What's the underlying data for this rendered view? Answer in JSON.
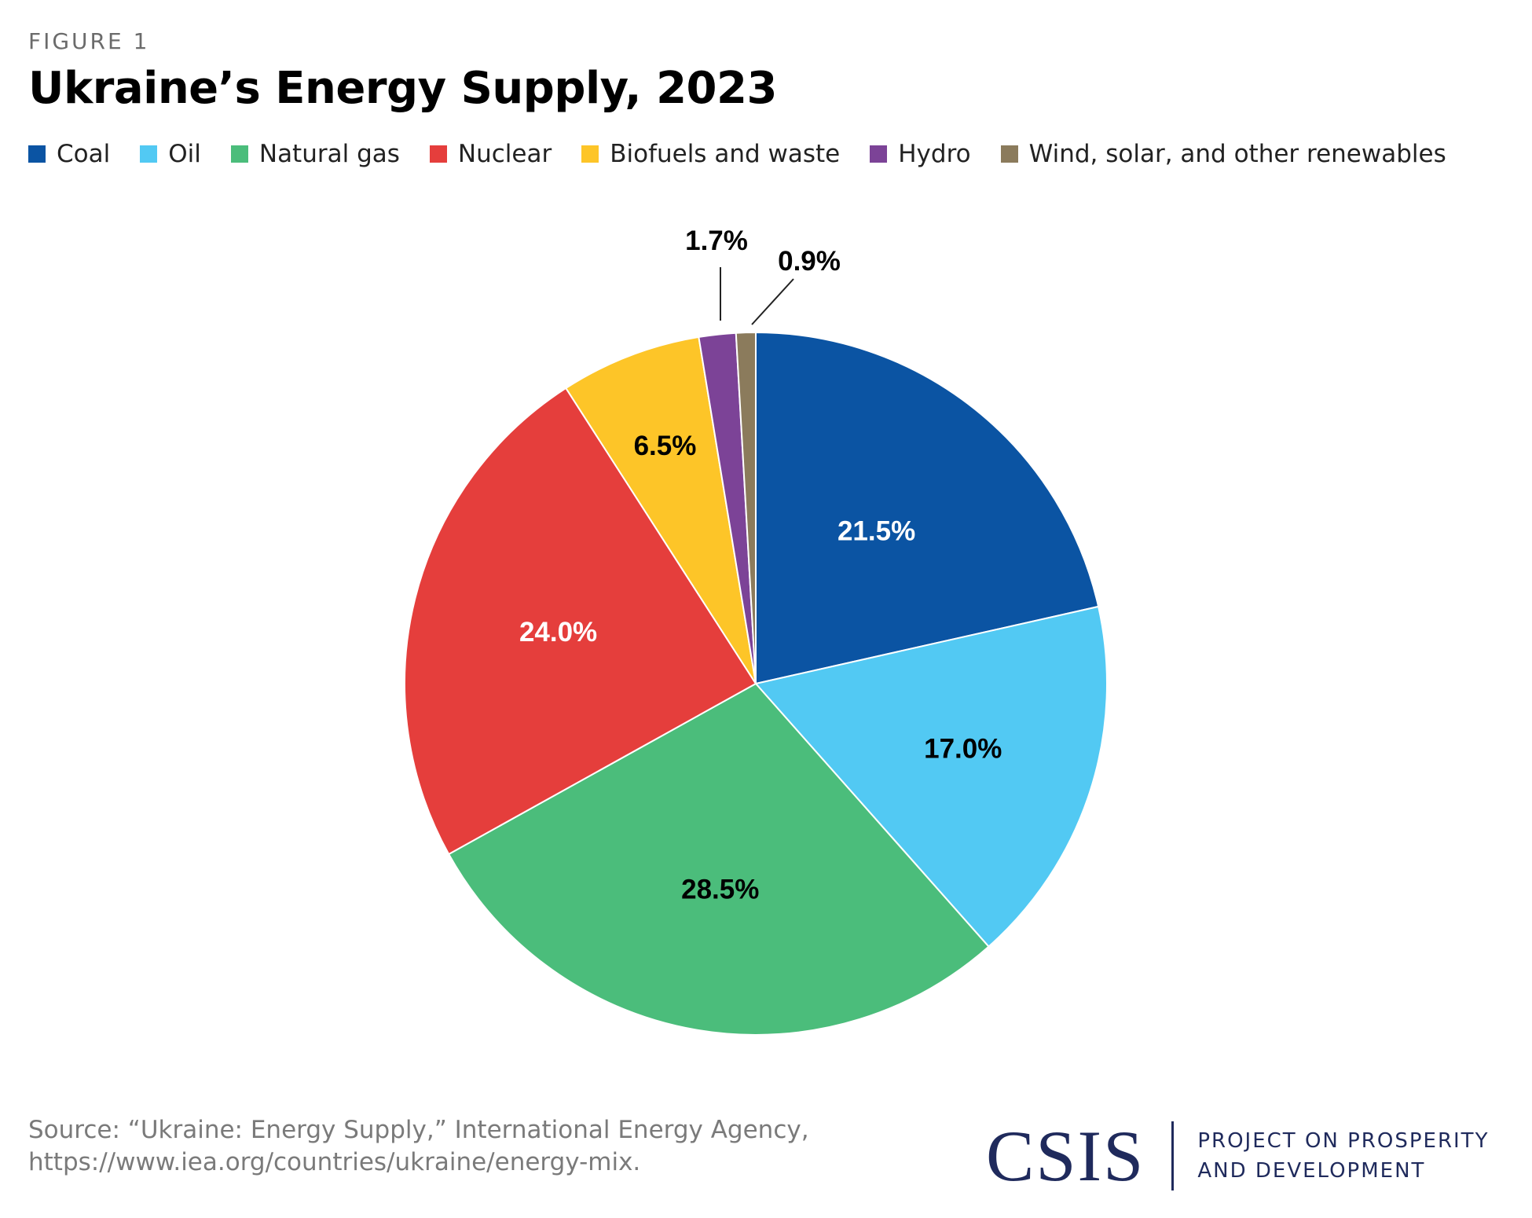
{
  "figure_label": "FIGURE 1",
  "title": "Ukraine’s Energy Supply, 2023",
  "legend": [
    {
      "label": "Coal",
      "color": "#0b54a3"
    },
    {
      "label": "Oil",
      "color": "#52c9f3"
    },
    {
      "label": "Natural gas",
      "color": "#4bbd7b"
    },
    {
      "label": "Nuclear",
      "color": "#e53e3c"
    },
    {
      "label": "Biofuels and waste",
      "color": "#fdc528"
    },
    {
      "label": "Hydro",
      "color": "#7c4397"
    },
    {
      "label": "Wind, solar, and other renewables",
      "color": "#8b7b5c"
    }
  ],
  "chart_data": {
    "type": "pie",
    "title": "Ukraine’s Energy Supply, 2023",
    "categories": [
      "Coal",
      "Oil",
      "Natural gas",
      "Nuclear",
      "Biofuels and waste",
      "Hydro",
      "Wind, solar, and other renewables"
    ],
    "values": [
      21.5,
      17.0,
      28.5,
      24.0,
      6.5,
      1.7,
      0.9
    ],
    "value_labels": [
      "21.5%",
      "17.0%",
      "28.5%",
      "24.0%",
      "6.5%",
      "1.7%",
      "0.9%"
    ],
    "colors": [
      "#0b54a3",
      "#52c9f3",
      "#4bbd7b",
      "#e53e3c",
      "#fdc528",
      "#7c4397",
      "#8b7b5c"
    ],
    "label_colors": [
      "#ffffff",
      "#000000",
      "#000000",
      "#ffffff",
      "#000000",
      "#000000",
      "#000000"
    ],
    "start_angle": "12 o'clock",
    "direction": "clockwise",
    "legend_position": "top"
  },
  "source": "Source: “Ukraine: Energy Supply,” International Energy Agency, https://www.iea.org/countries/ukraine/energy-mix.",
  "logo": {
    "mark": "CSIS",
    "line1": "PROJECT ON PROSPERITY",
    "line2": "AND DEVELOPMENT"
  }
}
